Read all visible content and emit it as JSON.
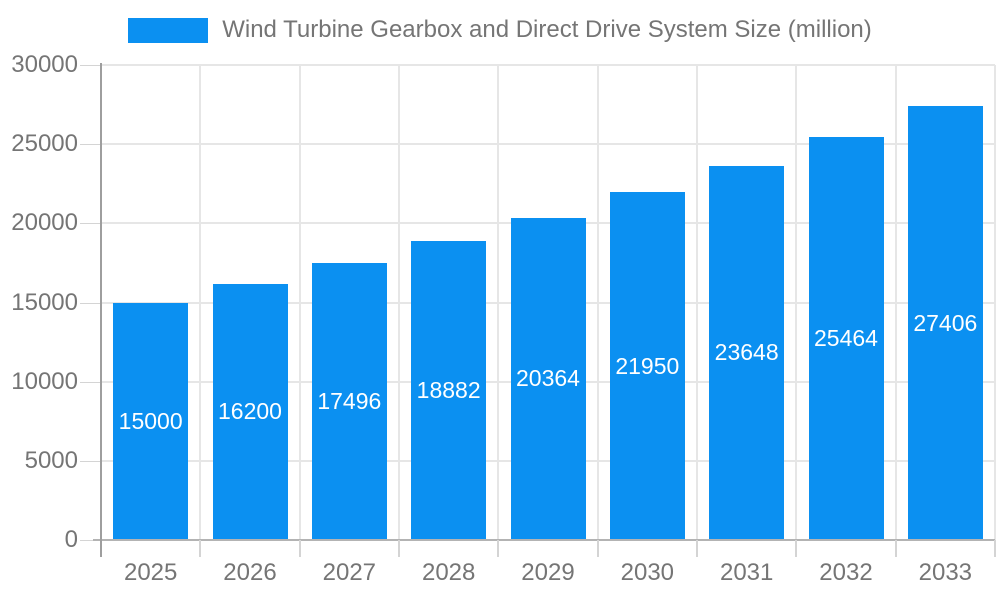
{
  "chart_data": {
    "type": "bar",
    "title": "Wind Turbine Gearbox and Direct Drive System Size (million)",
    "categories": [
      "2025",
      "2026",
      "2027",
      "2028",
      "2029",
      "2030",
      "2031",
      "2032",
      "2033"
    ],
    "values": [
      15000,
      16200,
      17496,
      18882,
      20364,
      21950,
      23648,
      25464,
      27406
    ],
    "series_name": "Wind Turbine Gearbox and Direct Drive System Size (million)",
    "xlabel": "",
    "ylabel": "",
    "ylim": [
      0,
      30000
    ],
    "yticks": [
      0,
      5000,
      10000,
      15000,
      20000,
      25000,
      30000
    ],
    "grid": true,
    "legend_position": "top",
    "bar_label_position": "inside-middle",
    "colors": {
      "bar": "#0b90f1",
      "bar_label": "#ffffff",
      "axis_text": "#757575",
      "legend_text": "#757575",
      "gridline": "#e6e6e6",
      "y_axis_line": "#9e9e9e",
      "x_axis_line": "#b3b3b3",
      "tick": "#d4d4d4",
      "background": "#ffffff"
    }
  }
}
